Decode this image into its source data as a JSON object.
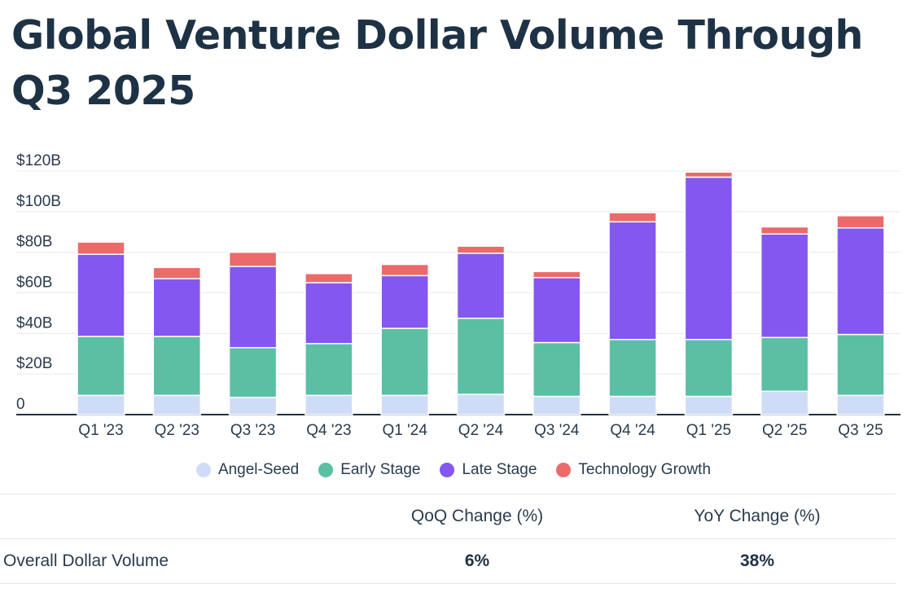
{
  "title": "Global Venture Dollar Volume Through Q3 2025",
  "colors": {
    "angel_seed": "#cfdcf8",
    "early_stage": "#5bbfa3",
    "late_stage": "#8357f0",
    "technology_growth": "#ec6a6a"
  },
  "chart_data": {
    "type": "bar",
    "stacked": true,
    "title": "Global Venture Dollar Volume Through Q3 2025",
    "xlabel": "",
    "ylabel": "",
    "ylim": [
      0,
      120
    ],
    "y_ticks": [
      0,
      20,
      40,
      60,
      80,
      100,
      120
    ],
    "y_tick_labels": [
      "0",
      "$20B",
      "$40B",
      "$60B",
      "$80B",
      "$100B",
      "$120B"
    ],
    "grid": true,
    "legend_position": "bottom-center",
    "categories": [
      "Q1 '23",
      "Q2 '23",
      "Q3 '23",
      "Q4 '23",
      "Q1 '24",
      "Q2 '24",
      "Q3 '24",
      "Q4 '24",
      "Q1 '25",
      "Q2 '25",
      "Q3 '25"
    ],
    "series": [
      {
        "name": "Angel-Seed",
        "color": "#cfdcf8",
        "values": [
          9.5,
          9.5,
          8.5,
          9.5,
          9.5,
          10,
          9,
          9,
          9,
          11.5,
          9.5
        ]
      },
      {
        "name": "Early Stage",
        "color": "#5bbfa3",
        "values": [
          29,
          29,
          24.5,
          25.5,
          33,
          37.5,
          26.5,
          28,
          28,
          26.5,
          30
        ]
      },
      {
        "name": "Late Stage",
        "color": "#8357f0",
        "values": [
          40.5,
          28.5,
          40,
          30,
          26,
          32,
          32,
          58,
          80,
          51,
          52.5
        ]
      },
      {
        "name": "Technology Growth",
        "color": "#ec6a6a",
        "values": [
          6,
          5.5,
          7,
          4.5,
          5.5,
          3.5,
          3,
          4.5,
          2.5,
          3.5,
          6
        ]
      }
    ]
  },
  "legend": {
    "items": [
      {
        "label": "Angel-Seed"
      },
      {
        "label": "Early Stage"
      },
      {
        "label": "Late Stage"
      },
      {
        "label": "Technology Growth"
      }
    ]
  },
  "table": {
    "header_qoq": "QoQ Change (%)",
    "header_yoy": "YoY Change (%)",
    "row_label": "Overall Dollar Volume",
    "qoq_value": "6%",
    "yoy_value": "38%"
  }
}
